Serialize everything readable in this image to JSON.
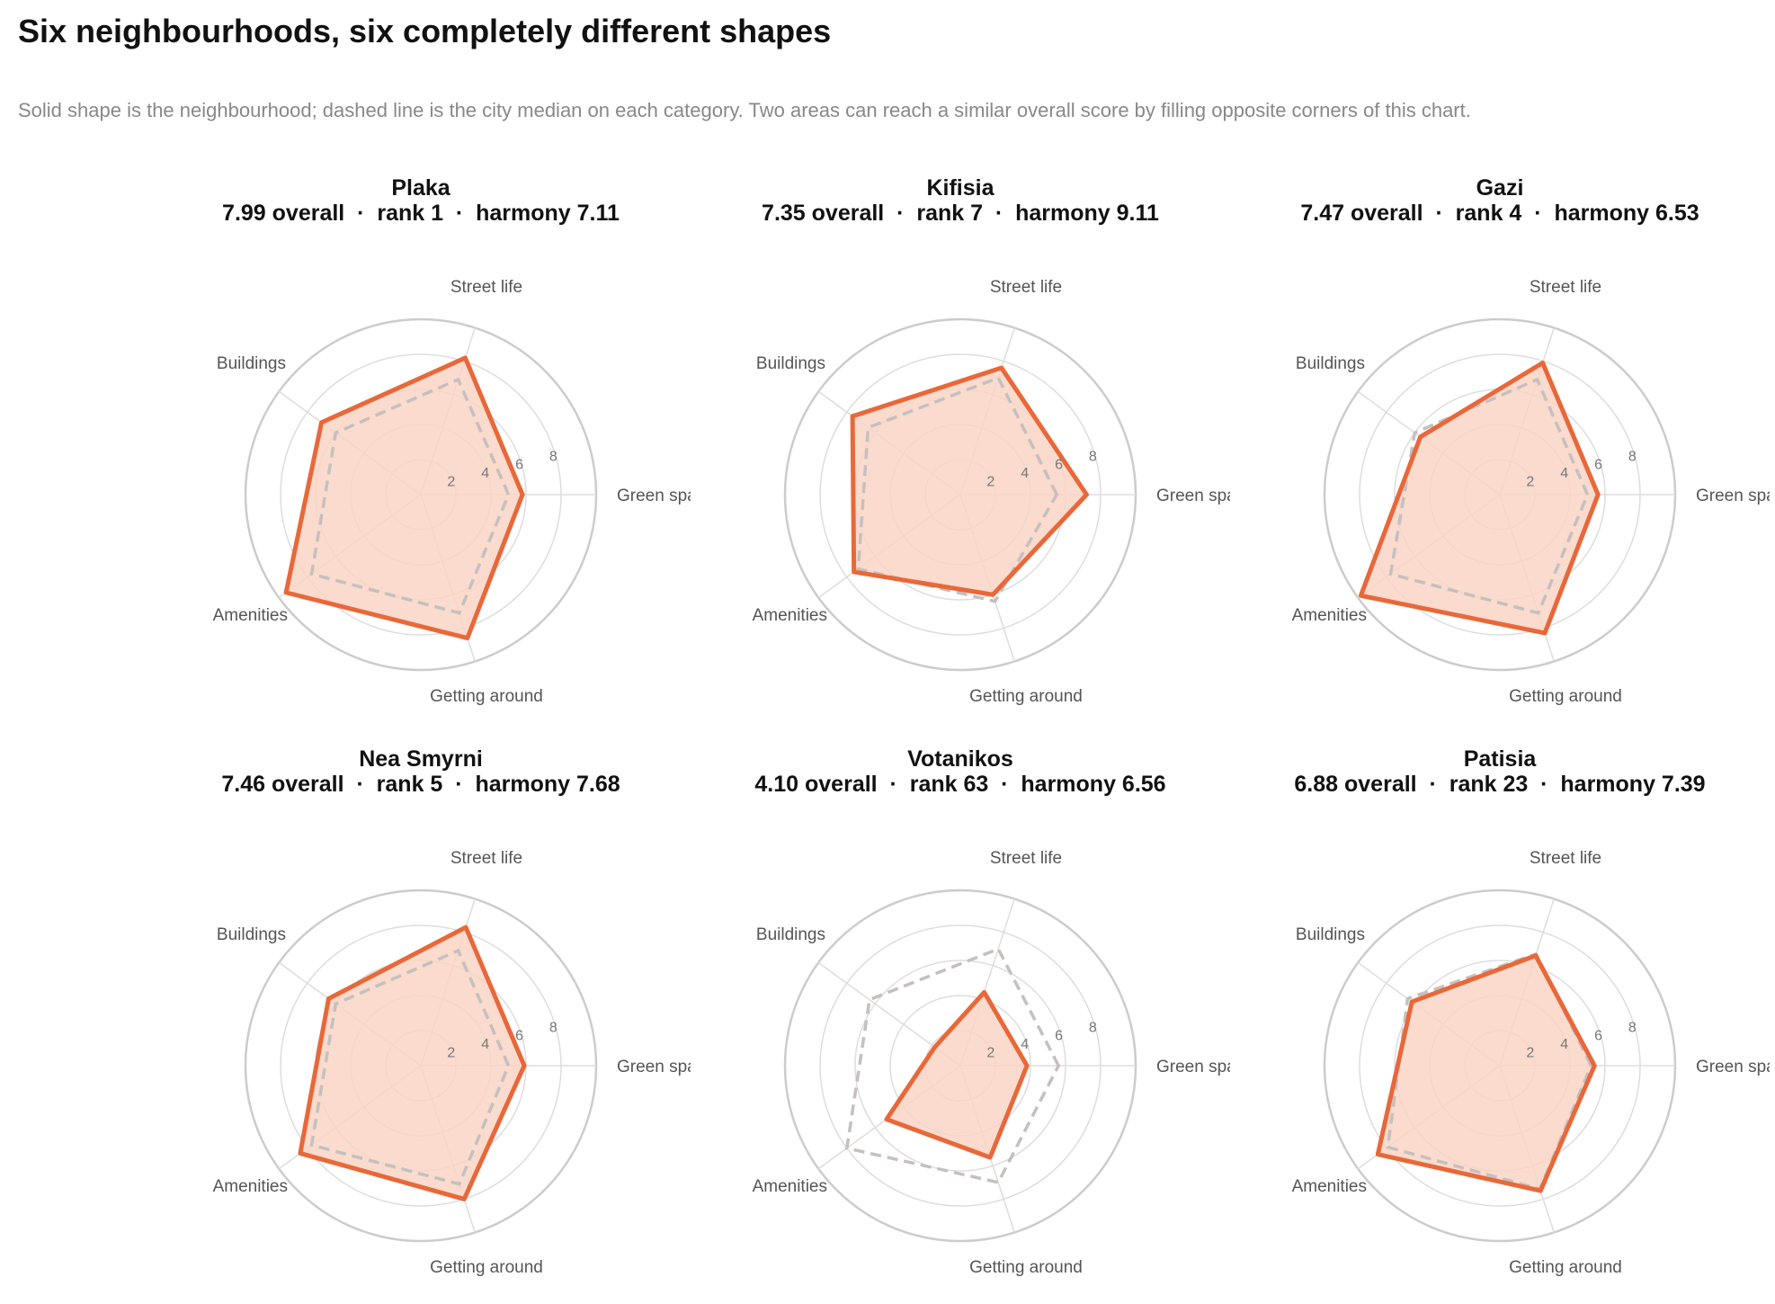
{
  "title": "Six neighbourhoods, six completely different shapes",
  "subtitle": "Solid shape is the neighbourhood; dashed line is the city median on each category. Two areas can reach a similar overall score by filling opposite corners of this chart.",
  "colors": {
    "accent": "#e8683a",
    "fill": "#f9d5c5",
    "median": "#c5c0be",
    "grid": "#dddddd",
    "outer_ring": "#cccccc"
  },
  "chart_data": [
    {
      "type": "radar",
      "name": "Plaka",
      "summary": "7.99 overall  ·  rank 1  ·  harmony 7.11",
      "axes": [
        "Green space",
        "Street life",
        "Buildings",
        "Amenities",
        "Getting around"
      ],
      "ticks": [
        2,
        4,
        6,
        8
      ],
      "rlim": [
        0,
        10
      ],
      "values": [
        5.8,
        8.2,
        7.0,
        9.5,
        8.6
      ],
      "median": [
        5.0,
        6.9,
        6.0,
        7.7,
        7.1
      ]
    },
    {
      "type": "radar",
      "name": "Kifisia",
      "summary": "7.35 overall  ·  rank 7  ·  harmony 9.11",
      "axes": [
        "Green space",
        "Street life",
        "Buildings",
        "Amenities",
        "Getting around"
      ],
      "ticks": [
        2,
        4,
        6,
        8
      ],
      "rlim": [
        0,
        10
      ],
      "values": [
        7.2,
        7.6,
        7.6,
        7.5,
        6.0
      ],
      "median": [
        5.5,
        7.0,
        6.5,
        7.2,
        6.4
      ]
    },
    {
      "type": "radar",
      "name": "Gazi",
      "summary": "7.47 overall  ·  rank 4  ·  harmony 6.53",
      "axes": [
        "Green space",
        "Street life",
        "Buildings",
        "Amenities",
        "Getting around"
      ],
      "ticks": [
        2,
        4,
        6,
        8
      ],
      "rlim": [
        0,
        10
      ],
      "values": [
        5.6,
        7.9,
        5.6,
        9.8,
        8.3
      ],
      "median": [
        5.0,
        6.9,
        6.0,
        7.7,
        7.1
      ]
    },
    {
      "type": "radar",
      "name": "Nea Smyrni",
      "summary": "7.46 overall  ·  rank 5  ·  harmony 7.68",
      "axes": [
        "Green space",
        "Street life",
        "Buildings",
        "Amenities",
        "Getting around"
      ],
      "ticks": [
        2,
        4,
        6,
        8
      ],
      "rlim": [
        0,
        10
      ],
      "values": [
        5.9,
        8.3,
        6.5,
        8.5,
        8.0
      ],
      "median": [
        5.0,
        6.9,
        6.0,
        7.7,
        7.1
      ]
    },
    {
      "type": "radar",
      "name": "Votanikos",
      "summary": "4.10 overall  ·  rank 63  ·  harmony 6.56",
      "axes": [
        "Green space",
        "Street life",
        "Buildings",
        "Amenities",
        "Getting around"
      ],
      "ticks": [
        2,
        4,
        6,
        8
      ],
      "rlim": [
        0,
        10
      ],
      "values": [
        3.8,
        4.4,
        1.8,
        5.2,
        5.5
      ],
      "median": [
        5.6,
        7.0,
        6.4,
        8.0,
        7.0
      ]
    },
    {
      "type": "radar",
      "name": "Patisia",
      "summary": "6.88 overall  ·  rank 23  ·  harmony 7.39",
      "axes": [
        "Green space",
        "Street life",
        "Buildings",
        "Amenities",
        "Getting around"
      ],
      "ticks": [
        2,
        4,
        6,
        8
      ],
      "rlim": [
        0,
        10
      ],
      "values": [
        5.4,
        6.6,
        6.2,
        8.6,
        7.5
      ],
      "median": [
        5.2,
        6.7,
        6.5,
        7.9,
        7.4
      ]
    }
  ]
}
